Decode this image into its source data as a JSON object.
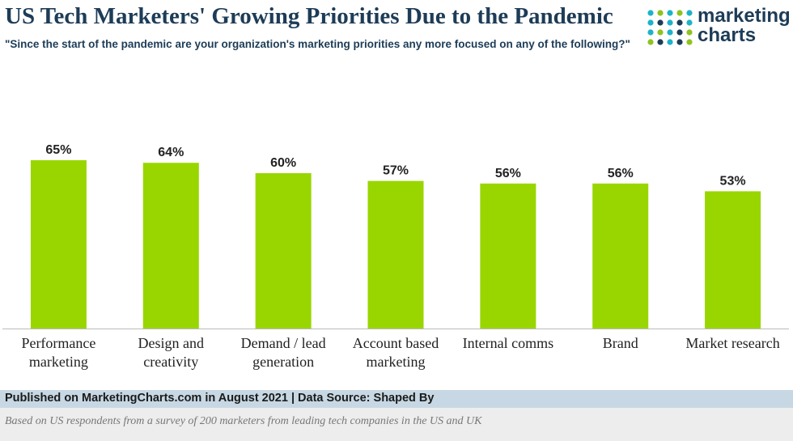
{
  "header": {
    "title": "US Tech Marketers' Growing Priorities Due to the Pandemic",
    "subtitle": "\"Since the start of the pandemic are your organization's marketing priorities any more focused on any of the following?\""
  },
  "logo": {
    "line1": "marketing",
    "line2": "charts",
    "dot_colors": [
      "#8fc31f",
      "#1db3c9",
      "#1d3c57"
    ]
  },
  "chart_data": {
    "type": "bar",
    "categories": [
      [
        "Performance",
        "marketing"
      ],
      [
        "Design and",
        "creativity"
      ],
      [
        "Demand / lead",
        "generation"
      ],
      [
        "Account based",
        "marketing"
      ],
      [
        "Internal comms"
      ],
      [
        "Brand"
      ],
      [
        "Market research"
      ]
    ],
    "values": [
      65,
      64,
      60,
      57,
      56,
      56,
      53
    ],
    "value_labels": [
      "65%",
      "64%",
      "60%",
      "57%",
      "56%",
      "56%",
      "53%"
    ],
    "ylim": [
      0,
      70
    ],
    "bar_color": "#99d600",
    "grid": false,
    "legend": "none"
  },
  "footer": {
    "source": "Published on MarketingCharts.com in August 2021 | Data Source: Shaped By",
    "note": "Based on US respondents from a survey of 200 marketers from leading tech companies in the US and UK"
  }
}
